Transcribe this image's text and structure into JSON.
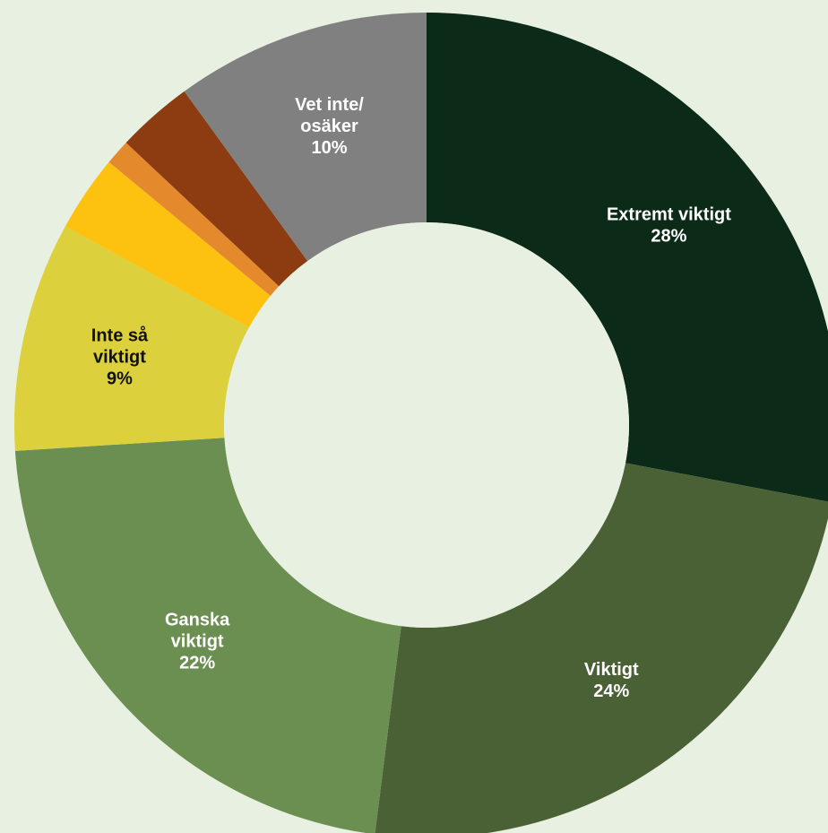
{
  "chart_data": {
    "type": "pie",
    "subtype": "donut",
    "legend": "none",
    "slices": [
      {
        "label_lines": [
          "Extremt viktigt",
          "28%"
        ],
        "value": 28,
        "color": "#0b2a18",
        "text_color": "#ffffff"
      },
      {
        "label_lines": [
          "Viktigt",
          "24%"
        ],
        "value": 24,
        "color": "#4a6136",
        "text_color": "#ffffff"
      },
      {
        "label_lines": [
          "Ganska",
          "viktigt",
          "22%"
        ],
        "value": 22,
        "color": "#6b8f51",
        "text_color": "#ffffff"
      },
      {
        "label_lines": [
          "Inte så",
          "viktigt",
          "9%"
        ],
        "value": 9,
        "color": "#dcd13c",
        "text_color": "#111111"
      },
      {
        "label_lines": [],
        "value": 3,
        "color": "#fdc10f",
        "text_color": "#111111"
      },
      {
        "label_lines": [],
        "value": 1,
        "color": "#e58a2c",
        "text_color": "#111111"
      },
      {
        "label_lines": [],
        "value": 3,
        "color": "#8c3c10",
        "text_color": "#ffffff"
      },
      {
        "label_lines": [
          "Vet inte/",
          "osäker",
          "10%"
        ],
        "value": 10,
        "color": "#808080",
        "text_color": "#ffffff"
      }
    ]
  },
  "colors": {
    "background": "#e8f0e2",
    "hole": "#e8f0e2"
  }
}
